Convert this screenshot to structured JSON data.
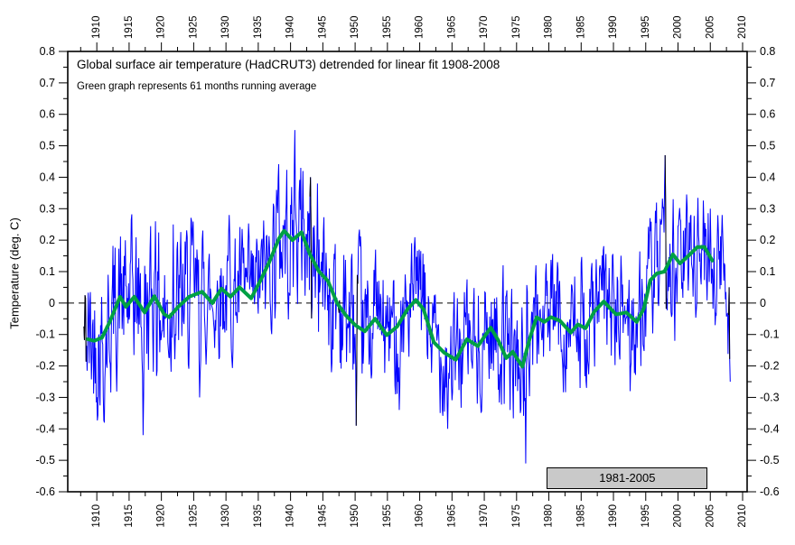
{
  "chart_data": {
    "type": "line",
    "title": "Global surface air temperature (HadCRUT3) detrended for linear fit 1908-2008",
    "subtitle": "Green graph represents 61 months running average",
    "ylabel": "Temperature (deg. C)",
    "xlim": [
      1905.5,
      2010.7
    ],
    "ylim": [
      -0.6,
      0.8
    ],
    "grid": false,
    "legend_position": "none",
    "x_axis": {
      "major_values": [
        1910,
        1915,
        1920,
        1925,
        1930,
        1935,
        1940,
        1945,
        1950,
        1955,
        1960,
        1965,
        1970,
        1975,
        1980,
        1985,
        1990,
        1995,
        2000,
        2005,
        2010
      ],
      "major_labels": [
        "1910",
        "1915",
        "1920",
        "1925",
        "1930",
        "1935",
        "1940",
        "1945",
        "1950",
        "1955",
        "1960",
        "1965",
        "1970",
        "1975",
        "1980",
        "1985",
        "1990",
        "1995",
        "2000",
        "2005",
        "2010"
      ],
      "minor_step": 2.5,
      "label_rotation_deg": -90,
      "ticks_on_top_and_bottom": true
    },
    "y_axis": {
      "major_values": [
        0.8,
        0.7,
        0.6,
        0.5,
        0.4,
        0.3,
        0.2,
        0.1,
        0,
        -0.1,
        -0.2,
        -0.3,
        -0.4,
        -0.5,
        -0.6
      ],
      "major_labels": [
        "0.8",
        "0.7",
        "0.6",
        "0.5",
        "0.4",
        "0.3",
        "0.2",
        "0.1",
        "0",
        "-0.1",
        "-0.2",
        "-0.3",
        "-0.4",
        "-0.5",
        "-0.6"
      ],
      "minor_step": 0.05,
      "ticks_on_left_and_right": true
    },
    "zero_line": {
      "y": 0,
      "style": "dashed",
      "color": "#000000"
    },
    "annotation_box": {
      "label": "1981-2005",
      "x_start_year": 1979.7,
      "x_end_year": 2004.6,
      "y_top_value": -0.522,
      "y_bottom_value": -0.591,
      "fill": "#c9c9c9",
      "border": "#000000"
    },
    "series": [
      {
        "name": "HadCRUT3 monthly global surface air temperature (detrended)",
        "type": "monthly_noise_line",
        "color": "#0000fe",
        "width": 1,
        "start_year": 1908.0,
        "end_year": 2008.08,
        "seed": 42,
        "noise_sd": 0.16,
        "ar": 0.45,
        "anchors": [
          [
            1911.2,
            -0.38
          ],
          [
            1917.2,
            -0.42
          ],
          [
            1919.1,
            0.26
          ],
          [
            1921.8,
            0.25
          ],
          [
            1925.9,
            -0.3
          ],
          [
            1930.5,
            0.28
          ],
          [
            1937.8,
            0.36
          ],
          [
            1940.7,
            0.55
          ],
          [
            1941.9,
            0.42
          ],
          [
            1943.1,
            0.4
          ],
          [
            1944.2,
            0.38
          ],
          [
            1946.3,
            -0.22
          ],
          [
            1950.2,
            -0.39
          ],
          [
            1953.2,
            0.17
          ],
          [
            1956.8,
            -0.34
          ],
          [
            1959.9,
            0.17
          ],
          [
            1964.3,
            -0.4
          ],
          [
            1968.9,
            -0.32
          ],
          [
            1972.9,
            0.12
          ],
          [
            1976.4,
            -0.51
          ],
          [
            1978.0,
            0.12
          ],
          [
            1981.3,
            0.13
          ],
          [
            1984.8,
            -0.27
          ],
          [
            1987.9,
            0.12
          ],
          [
            1989.8,
            0.15
          ],
          [
            1992.6,
            -0.28
          ],
          [
            1995.2,
            0.12
          ],
          [
            1998.04,
            0.47
          ],
          [
            1999.5,
            -0.12
          ],
          [
            2002.0,
            0.28
          ],
          [
            2005.0,
            0.3
          ],
          [
            2006.8,
            0.28
          ],
          [
            2007.9,
            0.05
          ],
          [
            2008.05,
            -0.25
          ]
        ],
        "value_clamp": [
          -0.515,
          0.555
        ],
        "dark_segments_color": "#000000",
        "dark_segments": [
          [
            1908.0,
            1908.4
          ],
          [
            1943.0,
            1943.33
          ],
          [
            1947.25,
            1947.6
          ],
          [
            1950.1,
            1950.45
          ],
          [
            1997.95,
            1998.2
          ],
          [
            2007.8,
            2008.08
          ]
        ]
      },
      {
        "name": "61 months running average",
        "type": "smooth_line",
        "color": "#00a044",
        "width": 4,
        "points": [
          [
            1908.6,
            -0.115
          ],
          [
            1909.6,
            -0.12
          ],
          [
            1910.8,
            -0.11
          ],
          [
            1912.0,
            -0.06
          ],
          [
            1913.6,
            0.02
          ],
          [
            1914.5,
            -0.012
          ],
          [
            1915.8,
            0.02
          ],
          [
            1917.4,
            -0.03
          ],
          [
            1918.9,
            0.022
          ],
          [
            1920.4,
            -0.035
          ],
          [
            1921.2,
            -0.045
          ],
          [
            1922.6,
            -0.012
          ],
          [
            1924.3,
            0.02
          ],
          [
            1926.3,
            0.036
          ],
          [
            1927.9,
            0.0
          ],
          [
            1929.3,
            0.046
          ],
          [
            1930.7,
            0.02
          ],
          [
            1932.1,
            0.05
          ],
          [
            1933.9,
            0.015
          ],
          [
            1935.3,
            0.07
          ],
          [
            1936.7,
            0.13
          ],
          [
            1938.2,
            0.205
          ],
          [
            1939.0,
            0.23
          ],
          [
            1940.3,
            0.2
          ],
          [
            1941.7,
            0.225
          ],
          [
            1943.0,
            0.155
          ],
          [
            1944.4,
            0.1
          ],
          [
            1945.8,
            0.07
          ],
          [
            1947.2,
            0.0
          ],
          [
            1948.6,
            -0.04
          ],
          [
            1950.0,
            -0.07
          ],
          [
            1951.5,
            -0.09
          ],
          [
            1953.1,
            -0.05
          ],
          [
            1954.9,
            -0.102
          ],
          [
            1956.5,
            -0.075
          ],
          [
            1958.1,
            -0.02
          ],
          [
            1959.4,
            0.01
          ],
          [
            1960.6,
            -0.02
          ],
          [
            1962.2,
            -0.125
          ],
          [
            1963.8,
            -0.158
          ],
          [
            1965.6,
            -0.18
          ],
          [
            1967.3,
            -0.115
          ],
          [
            1969.0,
            -0.137
          ],
          [
            1971.0,
            -0.078
          ],
          [
            1972.2,
            -0.12
          ],
          [
            1973.4,
            -0.175
          ],
          [
            1974.4,
            -0.155
          ],
          [
            1975.9,
            -0.202
          ],
          [
            1977.0,
            -0.115
          ],
          [
            1978.1,
            -0.045
          ],
          [
            1979.3,
            -0.06
          ],
          [
            1980.3,
            -0.045
          ],
          [
            1981.7,
            -0.056
          ],
          [
            1983.4,
            -0.094
          ],
          [
            1984.5,
            -0.068
          ],
          [
            1985.7,
            -0.08
          ],
          [
            1987.0,
            -0.028
          ],
          [
            1988.5,
            0.005
          ],
          [
            1990.4,
            -0.036
          ],
          [
            1992.0,
            -0.03
          ],
          [
            1993.6,
            -0.06
          ],
          [
            1994.7,
            -0.018
          ],
          [
            1995.7,
            0.072
          ],
          [
            1996.7,
            0.094
          ],
          [
            1997.9,
            0.1
          ],
          [
            1999.2,
            0.155
          ],
          [
            2000.3,
            0.126
          ],
          [
            2001.6,
            0.15
          ],
          [
            2003.0,
            0.178
          ],
          [
            2004.1,
            0.178
          ],
          [
            2005.3,
            0.135
          ]
        ]
      }
    ],
    "baseline_extension": [
      [
        2006.0,
        0.12
      ],
      [
        2007.0,
        0.1
      ],
      [
        2007.6,
        0.05
      ],
      [
        2008.08,
        -0.18
      ]
    ]
  },
  "colors": {
    "background": "#ffffff",
    "axis": "#000000",
    "monthly_line": "#0000fe",
    "running_average": "#00a044",
    "annotation_fill": "#c9c9c9"
  }
}
